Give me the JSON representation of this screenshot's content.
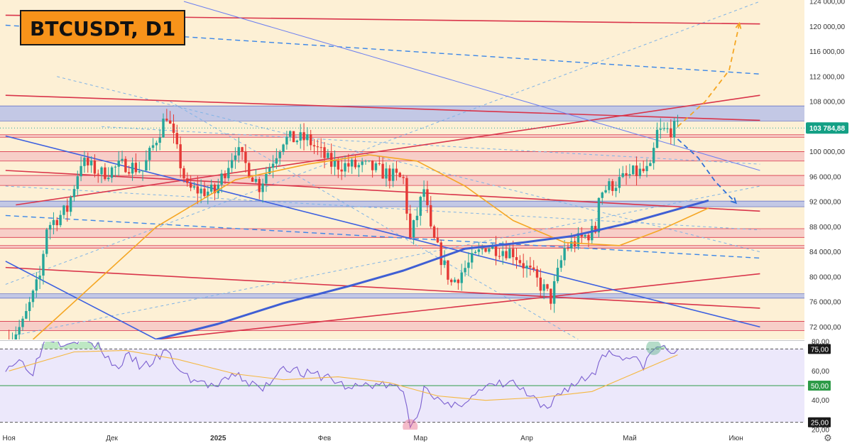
{
  "header": {
    "symbol_label": "BTCUSDT, D1"
  },
  "colors": {
    "up": "#26a69a",
    "down": "#e53935",
    "accent": "#f7931a",
    "price_badge": "#14a085",
    "pane_background": "#fdf0d5",
    "rsi_background": "#ece8fb"
  },
  "chart_data": [
    {
      "type": "candlestick",
      "symbol": "BTCUSDT",
      "timeframe": "D1",
      "ylim": [
        70000,
        124000
      ],
      "y_ticks": [
        "72 000,00",
        "76 000,00",
        "80 000,00",
        "84 000,00",
        "88 000,00",
        "92 000,00",
        "96 000,00",
        "100 000,00",
        "104 000,00",
        "108 000,00",
        "112 000,00",
        "116 000,00",
        "120 000,00",
        "124 000,00"
      ],
      "last_price": "103 784,88",
      "ohlc_anchors": [
        {
          "date": "2024-11-01",
          "close": 70000
        },
        {
          "date": "2024-11-05",
          "close": 72500
        },
        {
          "date": "2024-11-10",
          "close": 80000
        },
        {
          "date": "2024-11-12",
          "close": 88000
        },
        {
          "date": "2024-11-18",
          "close": 90800
        },
        {
          "date": "2024-11-22",
          "close": 98400
        },
        {
          "date": "2024-11-28",
          "close": 96500
        },
        {
          "date": "2024-12-05",
          "close": 98000
        },
        {
          "date": "2024-12-10",
          "close": 97000
        },
        {
          "date": "2024-12-17",
          "close": 106000
        },
        {
          "date": "2024-12-23",
          "close": 94000
        },
        {
          "date": "2024-12-31",
          "close": 93500
        },
        {
          "date": "2025-01-06",
          "close": 100500
        },
        {
          "date": "2025-01-13",
          "close": 94500
        },
        {
          "date": "2025-01-20",
          "close": 102000
        },
        {
          "date": "2025-01-27",
          "close": 102000
        },
        {
          "date": "2025-02-03",
          "close": 98000
        },
        {
          "date": "2025-02-14",
          "close": 97500
        },
        {
          "date": "2025-02-24",
          "close": 95500
        },
        {
          "date": "2025-02-26",
          "close": 86000
        },
        {
          "date": "2025-03-02",
          "close": 94000
        },
        {
          "date": "2025-03-04",
          "close": 87000
        },
        {
          "date": "2025-03-10",
          "close": 79000
        },
        {
          "date": "2025-03-20",
          "close": 85000
        },
        {
          "date": "2025-03-28",
          "close": 84000
        },
        {
          "date": "2025-04-06",
          "close": 78000
        },
        {
          "date": "2025-04-08",
          "close": 76500
        },
        {
          "date": "2025-04-12",
          "close": 84500
        },
        {
          "date": "2025-04-21",
          "close": 87500
        },
        {
          "date": "2025-04-22",
          "close": 93500
        },
        {
          "date": "2025-05-02",
          "close": 96500
        },
        {
          "date": "2025-05-07",
          "close": 97000
        },
        {
          "date": "2025-05-09",
          "close": 103000
        },
        {
          "date": "2025-05-15",
          "close": 103784
        }
      ],
      "moving_averages": [
        {
          "name": "ma-orange",
          "color": "#f5a623",
          "points": [
            [
              "2024-11-08",
              70000
            ],
            [
              "2024-11-28",
              80000
            ],
            [
              "2024-12-14",
              88000
            ],
            [
              "2025-01-06",
              95500
            ],
            [
              "2025-01-27",
              98000
            ],
            [
              "2025-02-14",
              99500
            ],
            [
              "2025-02-28",
              98500
            ],
            [
              "2025-03-14",
              94500
            ],
            [
              "2025-03-28",
              89000
            ],
            [
              "2025-04-12",
              85500
            ],
            [
              "2025-04-28",
              85000
            ],
            [
              "2025-05-10",
              87500
            ],
            [
              "2025-05-24",
              91000
            ]
          ]
        },
        {
          "name": "ma-blue",
          "color": "#3f5fd4",
          "points": [
            [
              "2024-12-14",
              70000
            ],
            [
              "2025-01-01",
              72500
            ],
            [
              "2025-01-20",
              75800
            ],
            [
              "2025-02-08",
              78500
            ],
            [
              "2025-02-24",
              81000
            ],
            [
              "2025-03-14",
              84500
            ],
            [
              "2025-03-31",
              85500
            ],
            [
              "2025-04-14",
              86500
            ],
            [
              "2025-04-30",
              88500
            ],
            [
              "2025-05-24",
              92200
            ]
          ]
        }
      ],
      "horizontal_zones": [
        {
          "from": 104900,
          "to": 107300,
          "color": "#b9c1e8"
        },
        {
          "from": 102300,
          "to": 102700,
          "color": "#f6c8c5"
        },
        {
          "from": 98500,
          "to": 100000,
          "color": "#f6c8c5"
        },
        {
          "from": 94600,
          "to": 96200,
          "color": "#f6c8c5"
        },
        {
          "from": 91200,
          "to": 92100,
          "color": "#b9c1e8"
        },
        {
          "from": 86300,
          "to": 87700,
          "color": "#f6c8c5"
        },
        {
          "from": 84600,
          "to": 85000,
          "color": "#f6c8c5"
        },
        {
          "from": 76600,
          "to": 77300,
          "color": "#b9c1e8"
        },
        {
          "from": 71400,
          "to": 72900,
          "color": "#f6c8c5"
        }
      ],
      "trend_lines": [
        {
          "color": "#d9344a",
          "from": [
            "2024-10-31",
            121800
          ],
          "to": [
            "2025-06-08",
            120400
          ]
        },
        {
          "color": "#d9344a",
          "from": [
            "2024-10-31",
            109000
          ],
          "to": [
            "2025-06-08",
            105000
          ]
        },
        {
          "color": "#d9344a",
          "from": [
            "2024-10-31",
            97000
          ],
          "to": [
            "2025-06-08",
            90500
          ]
        },
        {
          "color": "#d9344a",
          "from": [
            "2024-10-31",
            81500
          ],
          "to": [
            "2025-06-08",
            75000
          ]
        },
        {
          "color": "#d9344a",
          "from": [
            "2024-11-03",
            91500
          ],
          "to": [
            "2025-06-08",
            109000
          ]
        },
        {
          "color": "#d9344a",
          "from": [
            "2024-12-14",
            70000
          ],
          "to": [
            "2025-06-08",
            80500
          ]
        },
        {
          "color": "#3b5fe0",
          "from": [
            "2024-10-31",
            102500
          ],
          "to": [
            "2025-06-08",
            72000
          ]
        },
        {
          "color": "#3b5fe0",
          "from": [
            "2024-10-31",
            82500
          ],
          "to": [
            "2024-12-14",
            70000
          ]
        },
        {
          "color": "#6c7ff0",
          "from": [
            "2024-12-22",
            124000
          ],
          "to": [
            "2025-06-08",
            97000
          ]
        }
      ],
      "dashed_lines": [
        {
          "color": "#3a86e8",
          "from": [
            "2024-10-31",
            120200
          ],
          "to": [
            "2025-06-08",
            112400
          ]
        },
        {
          "color": "#3a86e8",
          "from": [
            "2024-10-31",
            89800
          ],
          "to": [
            "2025-06-08",
            83000
          ]
        },
        {
          "color": "#7fb3e6",
          "from": [
            "2024-10-31",
            78800
          ],
          "to": [
            "2025-06-08",
            124000
          ]
        },
        {
          "color": "#7fb3e6",
          "from": [
            "2024-10-31",
            94500
          ],
          "to": [
            "2025-06-08",
            87500
          ]
        },
        {
          "color": "#7fb3e6",
          "from": [
            "2024-11-15",
            112000
          ],
          "to": [
            "2025-06-08",
            84000
          ]
        },
        {
          "color": "#7fb3e6",
          "from": [
            "2024-11-28",
            104000
          ],
          "to": [
            "2025-06-08",
            98000
          ]
        },
        {
          "color": "#7fb3e6",
          "from": [
            "2024-11-03",
            70700
          ],
          "to": [
            "2025-06-08",
            94500
          ]
        },
        {
          "color": "#7fb3e6",
          "from": [
            "2024-12-18",
            108000
          ],
          "to": [
            "2025-04-16",
            70000
          ]
        }
      ],
      "forecast_paths": [
        {
          "color": "#f5a623",
          "points": [
            [
              "2025-05-15",
              104000
            ],
            [
              "2025-05-23",
              108000
            ],
            [
              "2025-05-30",
              113000
            ],
            [
              "2025-06-02",
              120500
            ]
          ]
        },
        {
          "color": "#2f6fd6",
          "points": [
            [
              "2025-05-15",
              102000
            ],
            [
              "2025-05-21",
              99000
            ],
            [
              "2025-05-26",
              95200
            ],
            [
              "2025-06-01",
              91800
            ]
          ]
        }
      ]
    },
    {
      "type": "line",
      "name": "RSI",
      "ylim": [
        20,
        80
      ],
      "y_ticks": [
        "20,00",
        "40,00",
        "60,00",
        "80,00"
      ],
      "levels": [
        {
          "value": 75,
          "label": "75,00",
          "style": "dashed"
        },
        {
          "value": 50,
          "label": "50,00",
          "style": "solid",
          "color": "#2e9b48"
        },
        {
          "value": 25,
          "label": "25,00",
          "style": "dashed"
        }
      ],
      "markers": [
        {
          "date": "2025-02-26",
          "value": 22,
          "color": "#e86a8a"
        },
        {
          "date": "2025-05-08",
          "value": 76,
          "color": "#5cb389"
        }
      ],
      "rsi_points": [
        [
          "2024-10-31",
          63
        ],
        [
          "2024-11-04",
          67
        ],
        [
          "2024-11-08",
          60
        ],
        [
          "2024-11-10",
          72
        ],
        [
          "2024-11-12",
          84
        ],
        [
          "2024-11-16",
          80
        ],
        [
          "2024-11-22",
          82
        ],
        [
          "2024-11-28",
          75
        ],
        [
          "2024-12-02",
          62
        ],
        [
          "2024-12-06",
          70
        ],
        [
          "2024-12-10",
          62
        ],
        [
          "2024-12-17",
          73
        ],
        [
          "2024-12-22",
          57
        ],
        [
          "2024-12-27",
          52
        ],
        [
          "2025-01-01",
          49
        ],
        [
          "2025-01-06",
          58
        ],
        [
          "2025-01-10",
          52
        ],
        [
          "2025-01-14",
          47
        ],
        [
          "2025-01-20",
          64
        ],
        [
          "2025-01-26",
          58
        ],
        [
          "2025-02-02",
          56
        ],
        [
          "2025-02-08",
          48
        ],
        [
          "2025-02-14",
          51
        ],
        [
          "2025-02-20",
          50
        ],
        [
          "2025-02-24",
          46
        ],
        [
          "2025-02-26",
          24
        ],
        [
          "2025-03-01",
          33
        ],
        [
          "2025-03-02",
          53
        ],
        [
          "2025-03-06",
          40
        ],
        [
          "2025-03-10",
          34
        ],
        [
          "2025-03-15",
          42
        ],
        [
          "2025-03-22",
          50
        ],
        [
          "2025-03-28",
          52
        ],
        [
          "2025-04-02",
          42
        ],
        [
          "2025-04-07",
          32
        ],
        [
          "2025-04-10",
          45
        ],
        [
          "2025-04-14",
          50
        ],
        [
          "2025-04-21",
          59
        ],
        [
          "2025-04-23",
          73
        ],
        [
          "2025-04-30",
          70
        ],
        [
          "2025-05-05",
          64
        ],
        [
          "2025-05-09",
          77
        ],
        [
          "2025-05-15",
          72
        ]
      ],
      "signal_points": [
        [
          "2024-11-01",
          60
        ],
        [
          "2024-11-20",
          73
        ],
        [
          "2024-12-05",
          74
        ],
        [
          "2024-12-20",
          68
        ],
        [
          "2025-01-06",
          58
        ],
        [
          "2025-01-20",
          54
        ],
        [
          "2025-02-05",
          56
        ],
        [
          "2025-02-20",
          52
        ],
        [
          "2025-03-06",
          43
        ],
        [
          "2025-03-20",
          40
        ],
        [
          "2025-04-05",
          42
        ],
        [
          "2025-04-20",
          46
        ],
        [
          "2025-05-01",
          57
        ],
        [
          "2025-05-15",
          71
        ]
      ]
    }
  ],
  "x_axis": {
    "labels": [
      {
        "date": "2024-11-01",
        "text": "Ноя",
        "bold": false
      },
      {
        "date": "2024-12-01",
        "text": "Дек",
        "bold": false
      },
      {
        "date": "2025-01-01",
        "text": "2025",
        "bold": true
      },
      {
        "date": "2025-02-01",
        "text": "Фев",
        "bold": false
      },
      {
        "date": "2025-03-01",
        "text": "Мар",
        "bold": false
      },
      {
        "date": "2025-04-01",
        "text": "Апр",
        "bold": false
      },
      {
        "date": "2025-05-01",
        "text": "Май",
        "bold": false
      },
      {
        "date": "2025-06-01",
        "text": "Июн",
        "bold": false
      }
    ]
  },
  "footer": {
    "settings_icon": "gear-icon",
    "settings_glyph": "⚙"
  }
}
